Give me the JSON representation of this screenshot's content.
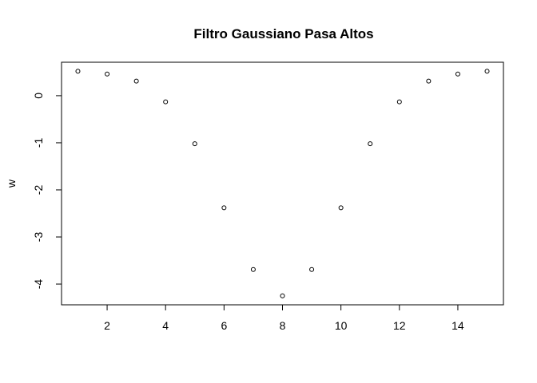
{
  "chart_data": {
    "type": "scatter",
    "title": "Filtro Gaussiano Pasa Altos",
    "xlabel": "",
    "ylabel": "w",
    "xlim": [
      0.44,
      15.56
    ],
    "ylim": [
      -4.44,
      0.71
    ],
    "x_ticks": [
      2,
      4,
      6,
      8,
      10,
      12,
      14
    ],
    "y_ticks": [
      0,
      -1,
      -2,
      -3,
      -4
    ],
    "x": [
      1,
      2,
      3,
      4,
      5,
      6,
      7,
      8,
      9,
      10,
      11,
      12,
      13,
      14,
      15
    ],
    "y": [
      0.52,
      0.46,
      0.31,
      -0.13,
      -1.02,
      -2.38,
      -3.69,
      -4.25,
      -3.69,
      -2.38,
      -1.02,
      -0.13,
      0.31,
      0.46,
      0.52
    ],
    "marker": "open-circle",
    "grid": false,
    "legend": "none"
  }
}
